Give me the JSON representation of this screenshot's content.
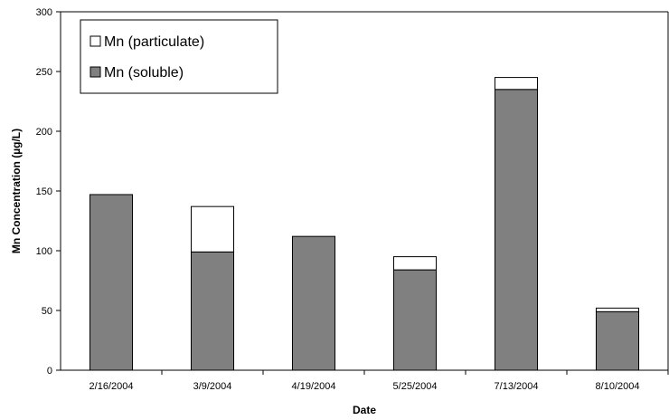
{
  "chart_data": {
    "type": "bar",
    "stacked": true,
    "categories": [
      "2/16/2004",
      "3/9/2004",
      "4/19/2004",
      "5/25/2004",
      "7/13/2004",
      "8/10/2004"
    ],
    "series": [
      {
        "name": "Mn (soluble)",
        "values": [
          147,
          99,
          112,
          84,
          235,
          49
        ],
        "color": "#808080"
      },
      {
        "name": "Mn (particulate)",
        "values": [
          0,
          38,
          0,
          11,
          10,
          3
        ],
        "color": "#ffffff"
      }
    ],
    "xlabel": "Date",
    "ylabel": "Mn Concentration (µg/L)",
    "ylim": [
      0,
      300
    ],
    "yticks": [
      0,
      50,
      100,
      150,
      200,
      250,
      300
    ],
    "grid": false,
    "legend_position": "top-left",
    "legend_order": [
      "Mn (particulate)",
      "Mn (soluble)"
    ]
  }
}
